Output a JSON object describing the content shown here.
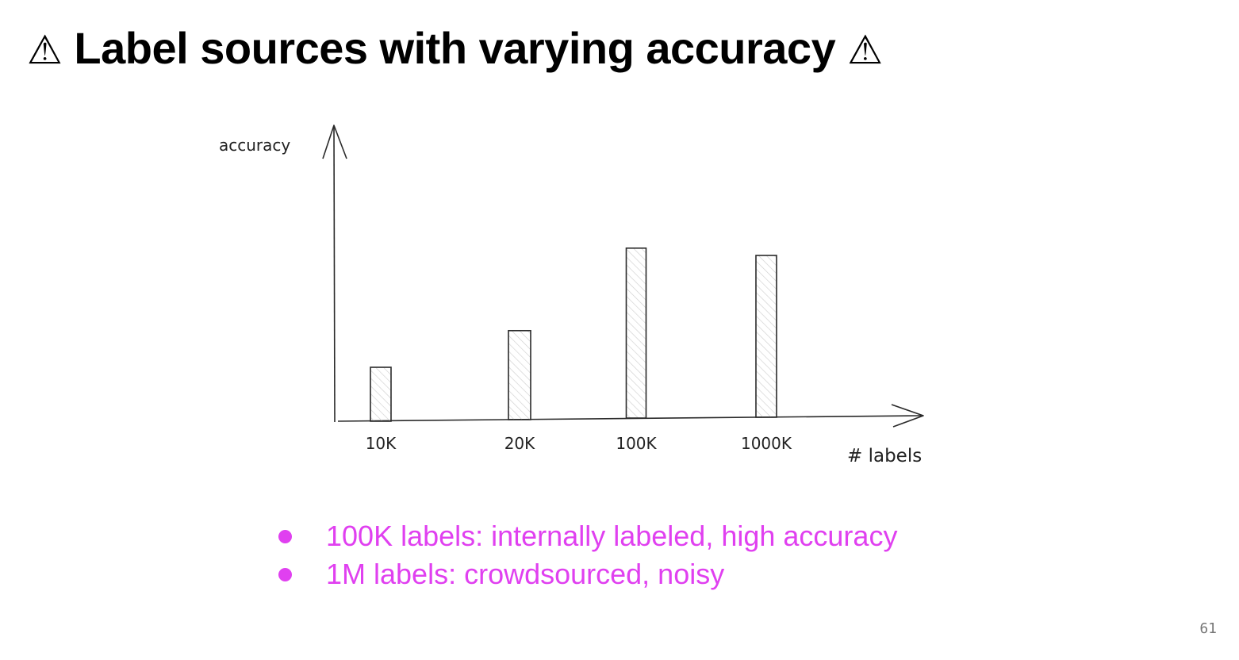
{
  "slide": {
    "warning_icon": "warning-icon",
    "title": "Label sources with varying accuracy",
    "page_number": "61"
  },
  "chart_data": {
    "type": "bar",
    "title": "",
    "xlabel": "# labels",
    "ylabel": "accuracy",
    "categories": [
      "10K",
      "20K",
      "100K",
      "1000K"
    ],
    "values": [
      0.2,
      0.33,
      0.63,
      0.6
    ],
    "ylim": [
      0,
      1
    ],
    "grid": false,
    "y_ticks_shown": false
  },
  "bullets": [
    "100K labels: internally labeled, high accuracy",
    "1M labels: crowdsourced, noisy"
  ],
  "colors": {
    "accent": "#e040f0",
    "bar_outline": "#2a2a2a",
    "bar_hatch": "#c8c8c8"
  }
}
